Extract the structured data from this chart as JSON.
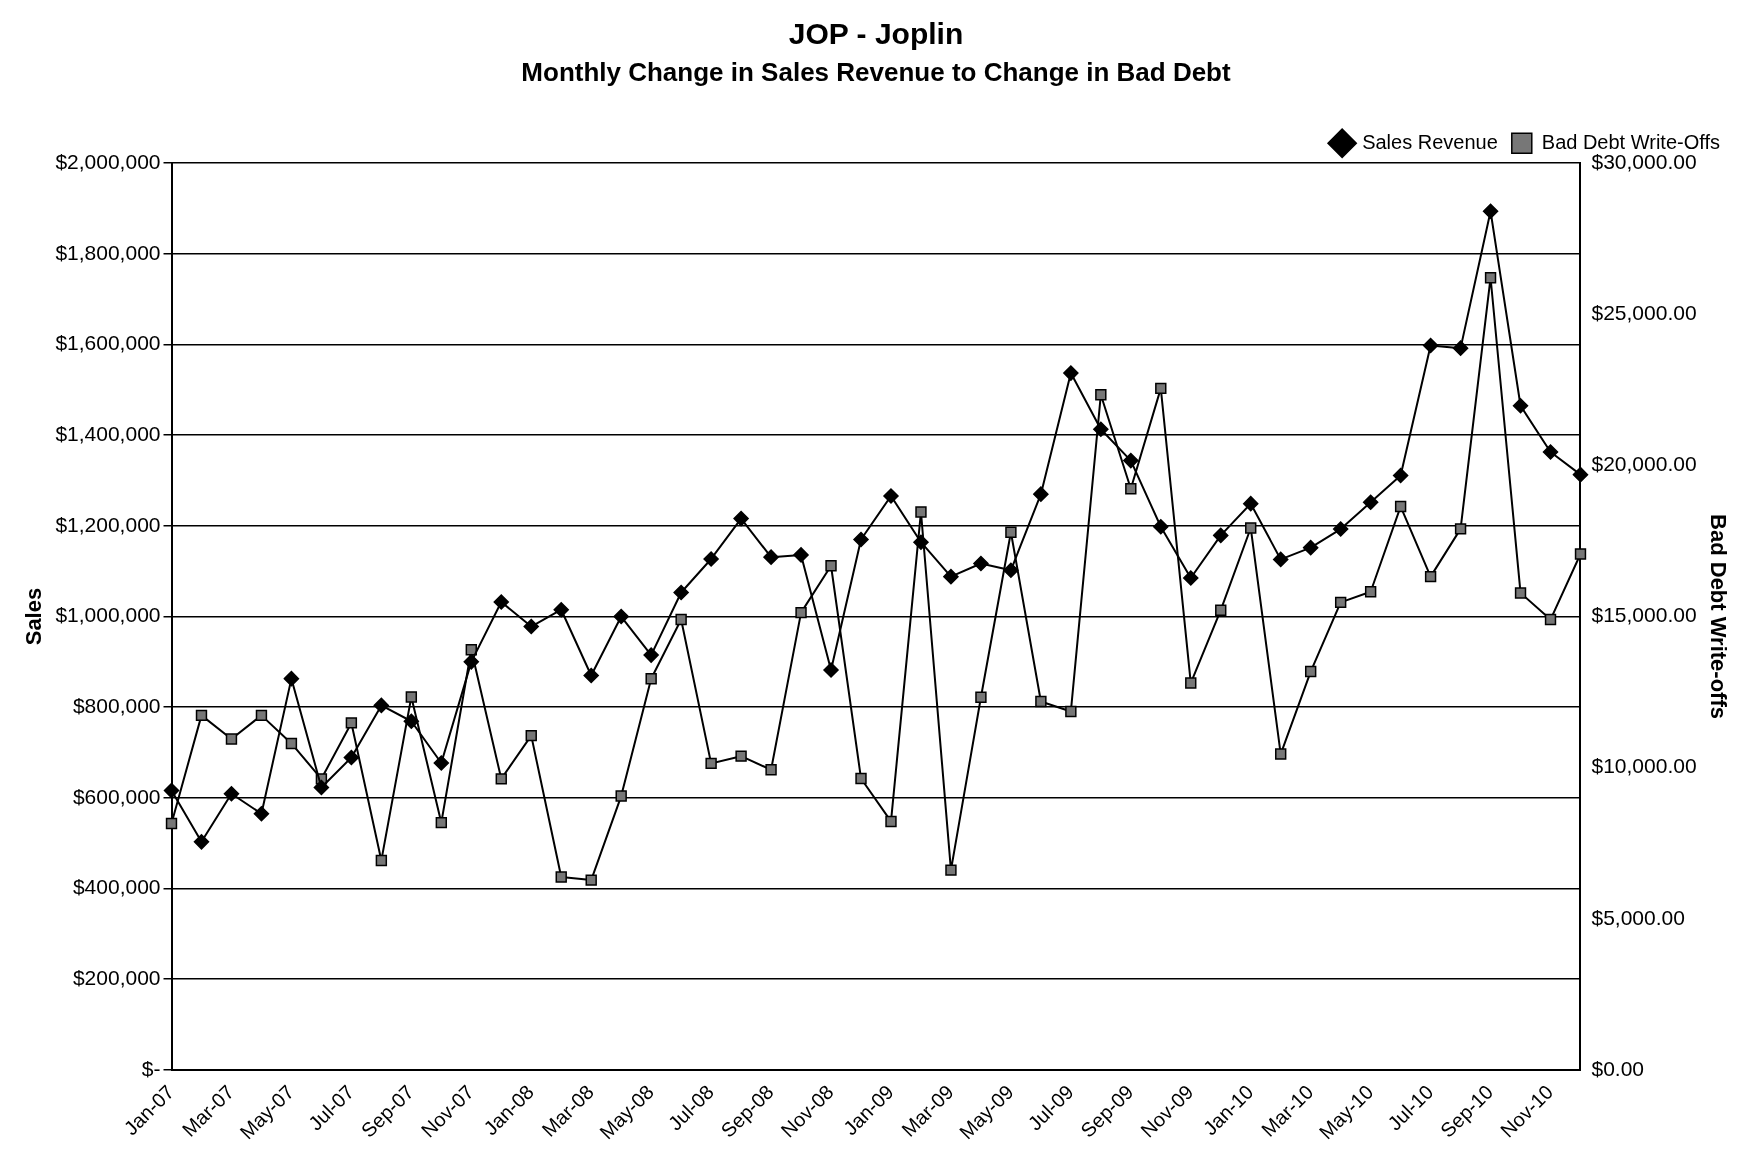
{
  "chart_data": {
    "type": "line",
    "title": "JOP - Joplin",
    "subtitle": "Monthly Change in Sales Revenue to Change in Bad Debt",
    "ylabel": "Sales",
    "y2label": "Bad Debt Write-offs",
    "categories": [
      "Jan-07",
      null,
      "Mar-07",
      null,
      "May-07",
      null,
      "Jul-07",
      null,
      "Sep-07",
      null,
      "Nov-07",
      null,
      "Jan-08",
      null,
      "Mar-08",
      null,
      "May-08",
      null,
      "Jul-08",
      null,
      "Sep-08",
      null,
      "Nov-08",
      null,
      "Jan-09",
      null,
      "Mar-09",
      null,
      "May-09",
      null,
      "Jul-09",
      null,
      "Sep-09",
      null,
      "Nov-09",
      null,
      "Jan-10",
      null,
      "Mar-10",
      null,
      "May-10",
      null,
      "Jul-10",
      null,
      "Sep-10",
      null,
      "Nov-10",
      null
    ],
    "series": [
      {
        "name": "Sales Revenue",
        "color": "#000000",
        "marker": "diamond",
        "values": [
          616000,
          503000,
          609000,
          565000,
          863000,
          623000,
          689000,
          804000,
          769000,
          677000,
          900000,
          1032000,
          978000,
          1015000,
          870000,
          1000000,
          915000,
          1053000,
          1127000,
          1216000,
          1131000,
          1136000,
          882000,
          1170000,
          1266000,
          1164000,
          1088000,
          1117000,
          1102000,
          1270000,
          1537000,
          1413000,
          1344000,
          1198000,
          1085000,
          1179000,
          1249000,
          1126000,
          1152000,
          1193000,
          1252000,
          1311000,
          1598000,
          1592000,
          1894000,
          1465000,
          1363000,
          1313000
        ]
      },
      {
        "name": "Bad Debt Write-Offs",
        "color": "#000000",
        "marker": "square",
        "axis": "y2",
        "values": [
          8150,
          11730,
          10950,
          11730,
          10800,
          9630,
          11480,
          6930,
          12340,
          8180,
          13900,
          9630,
          11060,
          6380,
          6280,
          9060,
          12940,
          14900,
          10140,
          10380,
          9930,
          15130,
          16680,
          9640,
          8220,
          18460,
          6610,
          12330,
          17790,
          12190,
          11860,
          22340,
          19230,
          22550,
          12800,
          15210,
          17930,
          10450,
          13180,
          15470,
          15820,
          18640,
          16320,
          17900,
          26210,
          15780,
          14900,
          17070
        ]
      }
    ],
    "ylim": [
      0,
      2000000
    ],
    "yticks": [
      {
        "value": 0,
        "label": "$-"
      },
      {
        "value": 200000,
        "label": "$200,000"
      },
      {
        "value": 400000,
        "label": "$400,000"
      },
      {
        "value": 600000,
        "label": "$600,000"
      },
      {
        "value": 800000,
        "label": "$800,000"
      },
      {
        "value": 1000000,
        "label": "$1,000,000"
      },
      {
        "value": 1200000,
        "label": "$1,200,000"
      },
      {
        "value": 1400000,
        "label": "$1,400,000"
      },
      {
        "value": 1600000,
        "label": "$1,600,000"
      },
      {
        "value": 1800000,
        "label": "$1,800,000"
      },
      {
        "value": 2000000,
        "label": "$2,000,000"
      }
    ],
    "y2lim": [
      0,
      30000
    ],
    "y2ticks": [
      {
        "value": 0,
        "label": "$0.00"
      },
      {
        "value": 5000,
        "label": "$5,000.00"
      },
      {
        "value": 10000,
        "label": "$10,000.00"
      },
      {
        "value": 15000,
        "label": "$15,000.00"
      },
      {
        "value": 20000,
        "label": "$20,000.00"
      },
      {
        "value": 25000,
        "label": "$25,000.00"
      },
      {
        "value": 30000,
        "label": "$30,000.00"
      }
    ],
    "grid": "y",
    "legend": "top right",
    "line_style": "solid"
  }
}
